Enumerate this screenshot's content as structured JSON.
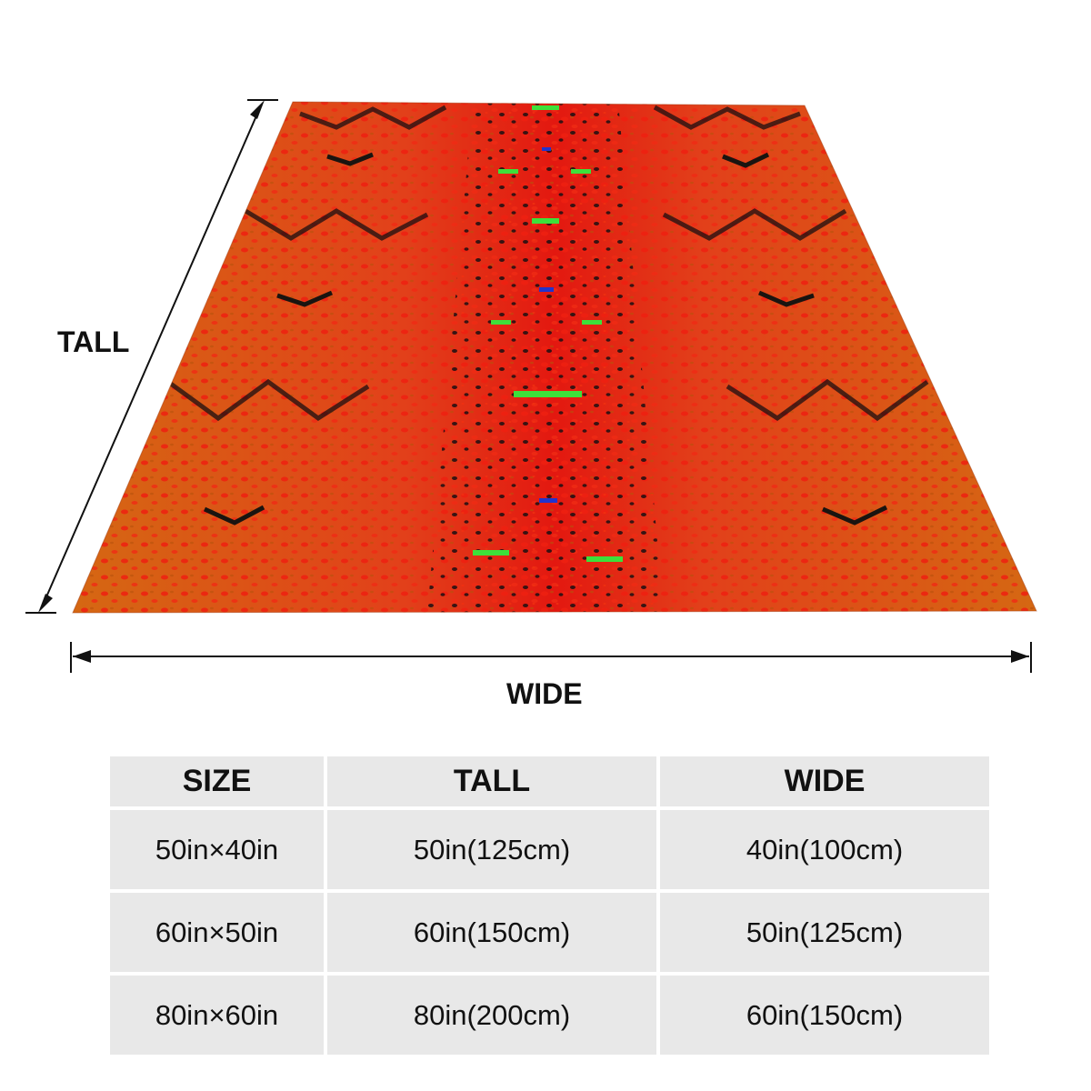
{
  "diagram": {
    "tall_label": "TALL",
    "wide_label": "WIDE"
  },
  "size_table": {
    "headers": [
      "SIZE",
      "TALL",
      "WIDE"
    ],
    "rows": [
      [
        "50in×40in",
        "50in(125cm)",
        "40in(100cm)"
      ],
      [
        "60in×50in",
        "60in(150cm)",
        "50in(125cm)"
      ],
      [
        "80in×60in",
        "80in(200cm)",
        "60in(150cm)"
      ]
    ]
  },
  "colors": {
    "blanket_red": "#e01a0e",
    "blanket_orange": "#d9620f",
    "pattern_dark": "#1a0f12",
    "pattern_green": "#3de03a",
    "pattern_blue": "#2233cc",
    "table_cell": "#e8e8e8"
  }
}
